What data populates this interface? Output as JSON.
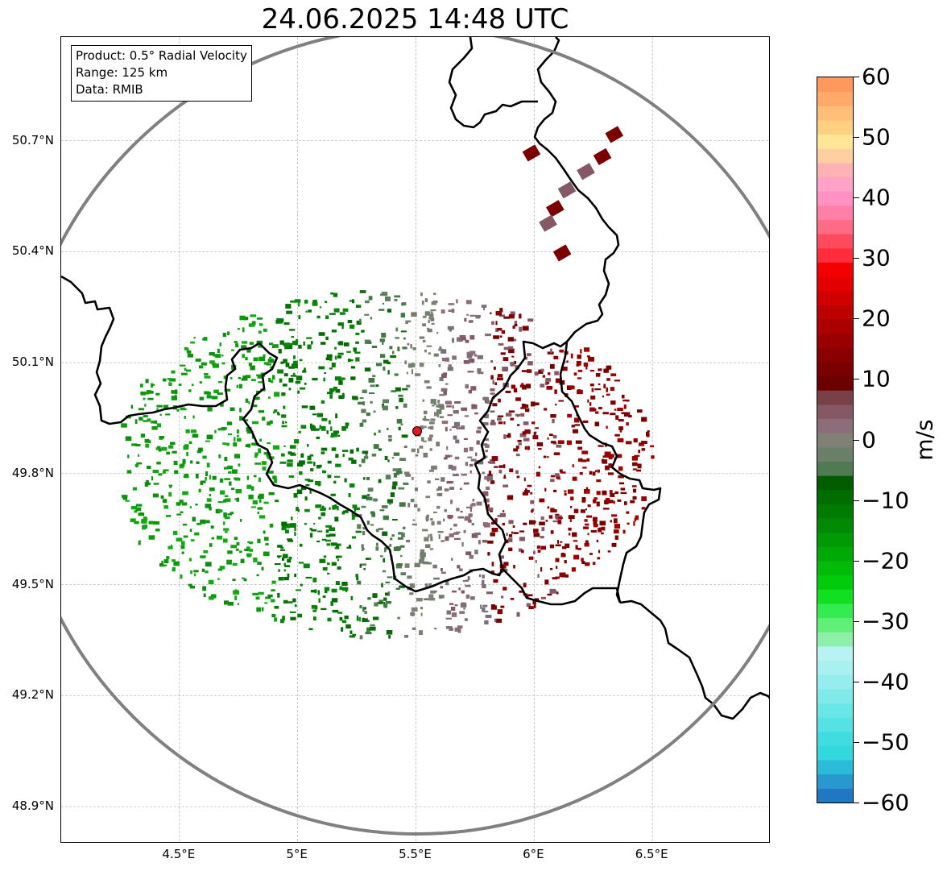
{
  "title": "24.06.2025 14:48 UTC",
  "info_box": {
    "product": "Product: 0.5° Radial Velocity",
    "range": "Range: 125 km",
    "data": "Data: RMIB"
  },
  "map": {
    "lon_range": [
      4.0,
      7.0
    ],
    "lat_range": [
      48.8,
      50.98
    ],
    "lat_ticks": [
      {
        "value": 48.9,
        "label": "48.9°N"
      },
      {
        "value": 49.2,
        "label": "49.2°N"
      },
      {
        "value": 49.5,
        "label": "49.5°N"
      },
      {
        "value": 49.8,
        "label": "49.8°N"
      },
      {
        "value": 50.1,
        "label": "50.1°N"
      },
      {
        "value": 50.4,
        "label": "50.4°N"
      },
      {
        "value": 50.7,
        "label": "50.7°N"
      }
    ],
    "lon_ticks": [
      {
        "value": 4.5,
        "label": "4.5°E"
      },
      {
        "value": 5.0,
        "label": "5°E"
      },
      {
        "value": 5.5,
        "label": "5.5°E"
      },
      {
        "value": 6.0,
        "label": "6°E"
      },
      {
        "value": 6.5,
        "label": "6.5°E"
      }
    ],
    "grid": true,
    "radar_site": {
      "lon": 5.505,
      "lat": 49.915,
      "color": "#e8141e"
    },
    "range_ring_color": "#808080",
    "border_color": "#000000"
  },
  "colorbar": {
    "label": "m/s",
    "min": -60,
    "max": 60,
    "ticks": [
      {
        "value": 60,
        "label": "60"
      },
      {
        "value": 50,
        "label": "50"
      },
      {
        "value": 40,
        "label": "40"
      },
      {
        "value": 30,
        "label": "30"
      },
      {
        "value": 20,
        "label": "20"
      },
      {
        "value": 10,
        "label": "10"
      },
      {
        "value": 0,
        "label": "0"
      },
      {
        "value": -10,
        "label": "−10"
      },
      {
        "value": -20,
        "label": "−20"
      },
      {
        "value": -30,
        "label": "−30"
      },
      {
        "value": -40,
        "label": "−40"
      },
      {
        "value": -50,
        "label": "−50"
      },
      {
        "value": -60,
        "label": "−60"
      }
    ],
    "colors": [
      "#1f78c1",
      "#2898cf",
      "#2bbbd8",
      "#31d8de",
      "#40dde0",
      "#55e2e4",
      "#6be6e6",
      "#80e9e9",
      "#96eded",
      "#a9f0f0",
      "#b8f2f2",
      "#8cf0a8",
      "#60f078",
      "#35ec50",
      "#10e020",
      "#00cc0c",
      "#00bb08",
      "#00aa06",
      "#009a04",
      "#008a03",
      "#007b02",
      "#006d01",
      "#005e00",
      "#507a52",
      "#6a8068",
      "#808076",
      "#8c6e7a",
      "#845864",
      "#7a4048",
      "#6a0000",
      "#7a0000",
      "#8a0000",
      "#9a0000",
      "#ac0000",
      "#bd0000",
      "#d00000",
      "#e40000",
      "#f50000",
      "#ff2c3c",
      "#ff4a5e",
      "#ff6a84",
      "#ff7fa6",
      "#ff92c3",
      "#ffa2c8",
      "#ffb2b4",
      "#ffcfa2",
      "#ffe696",
      "#ffd080",
      "#ffbe78",
      "#ffaa68",
      "#ff985a"
    ]
  }
}
